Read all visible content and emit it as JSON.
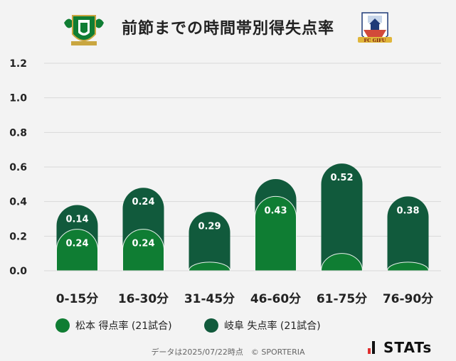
{
  "title": "前節までの時間帯別得失点率",
  "logos": {
    "left": "matsumoto-crest",
    "right": "fc-gifu-crest",
    "right_text": "FC GIFU"
  },
  "legend": [
    {
      "label": "松本 得点率 (21試合)",
      "color": "#0f7d33"
    },
    {
      "label": "岐阜 失点率 (21試合)",
      "color": "#115a3c"
    }
  ],
  "footer": "データは2025/07/22時点　© SPORTERIA",
  "brand": "STATs",
  "chart_data": {
    "type": "bar",
    "categories": [
      "0-15分",
      "16-30分",
      "31-45分",
      "46-60分",
      "61-75分",
      "76-90分"
    ],
    "series": [
      {
        "name": "松本 得点率 (21試合)",
        "values": [
          0.24,
          0.24,
          0.05,
          0.43,
          0.1,
          0.05
        ],
        "labels": [
          "0.24",
          "0.24",
          "",
          "0.43",
          "",
          ""
        ],
        "color": "#0f7d33"
      },
      {
        "name": "岐阜 失点率 (21試合)",
        "values": [
          0.14,
          0.24,
          0.29,
          0.1,
          0.52,
          0.38
        ],
        "labels": [
          "0.14",
          "0.24",
          "0.29",
          "",
          "0.52",
          "0.38"
        ],
        "color": "#115a3c"
      }
    ],
    "ylim": [
      0,
      1.2
    ],
    "yticks": [
      "0.0",
      "0.2",
      "0.4",
      "0.6",
      "0.8",
      "1.0",
      "1.2"
    ],
    "stacked": true,
    "grid": true
  }
}
